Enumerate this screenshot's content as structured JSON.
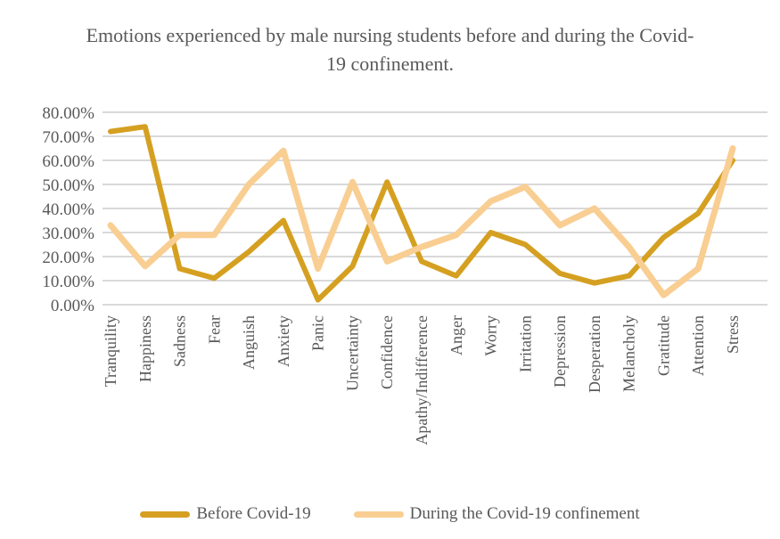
{
  "title": "Emotions experienced by male nursing students before and during the Covid-19 confinement.",
  "colors": {
    "before": "#D5A021",
    "during": "#F9CE92",
    "gridline": "#D9D9D9",
    "text": "#595959"
  },
  "chart_data": {
    "type": "line",
    "title": "Emotions experienced by male nursing students before and during the Covid-19 confinement.",
    "categories": [
      "Tranquility",
      "Happiness",
      "Sadness",
      "Fear",
      "Anguish",
      "Anxiety",
      "Panic",
      "Uncertainty",
      "Confidence",
      "Apathy/Indifference",
      "Anger",
      "Worry",
      "Irritation",
      "Depression",
      "Desperation",
      "Melancholy",
      "Gratitude",
      "Attention",
      "Stress"
    ],
    "series": [
      {
        "name": "Before Covid-19",
        "color_key": "before",
        "values": [
          72,
          74,
          15,
          11,
          22,
          35,
          2,
          16,
          51,
          18,
          12,
          30,
          25,
          13,
          9,
          12,
          28,
          38,
          60
        ]
      },
      {
        "name": "During the Covid-19 confinement",
        "color_key": "during",
        "values": [
          33,
          16,
          29,
          29,
          50,
          64,
          15,
          51,
          18,
          24,
          29,
          43,
          49,
          33,
          40,
          24,
          4,
          15,
          65
        ]
      }
    ],
    "xlabel": "",
    "ylabel": "",
    "ylim": [
      0,
      80
    ],
    "ytick_step": 10,
    "ytick_labels": [
      "0.00%",
      "10.00%",
      "20.00%",
      "30.00%",
      "40.00%",
      "50.00%",
      "60.00%",
      "70.00%",
      "80.00%"
    ],
    "value_unit": "percent",
    "grid": "horizontal",
    "legend_position": "bottom"
  }
}
